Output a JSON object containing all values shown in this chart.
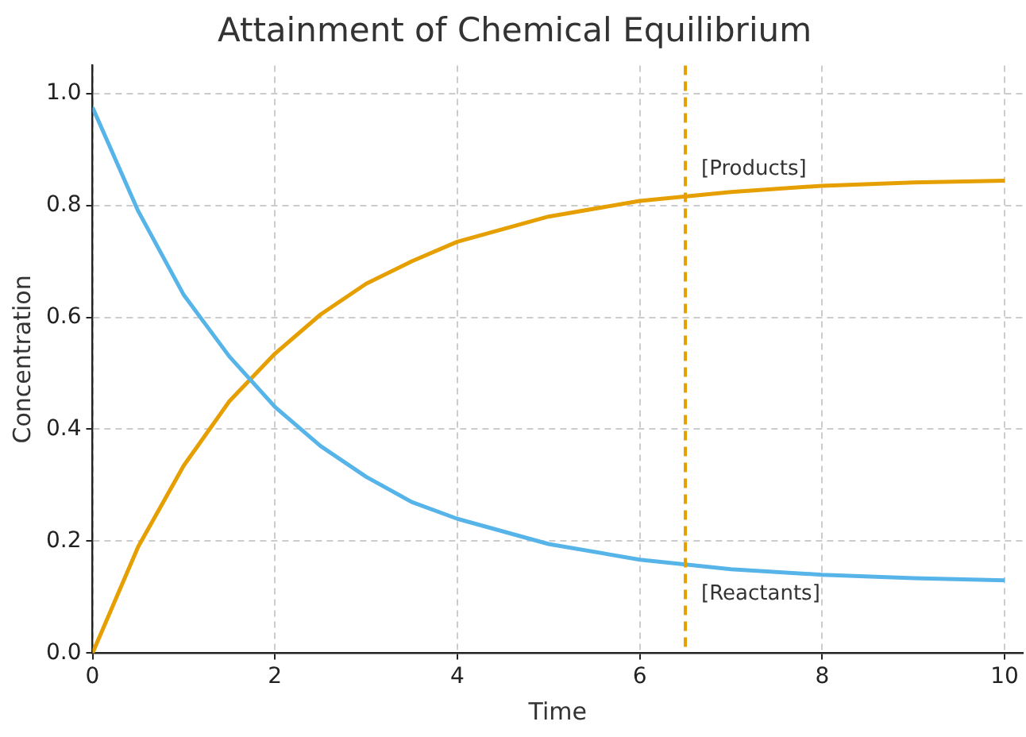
{
  "chart_data": {
    "type": "line",
    "title": "Attainment of Chemical Equilibrium",
    "xlabel": "Time",
    "ylabel": "Concentration",
    "x": [
      0,
      0.5,
      1,
      1.5,
      2,
      2.5,
      3,
      3.5,
      4,
      5,
      6,
      7,
      8,
      9,
      10
    ],
    "series": [
      {
        "name": "[Reactants]",
        "color": "#56b4e9",
        "values": [
          0.975,
          0.79,
          0.64,
          0.53,
          0.44,
          0.37,
          0.315,
          0.27,
          0.24,
          0.195,
          0.167,
          0.15,
          0.14,
          0.134,
          0.13
        ]
      },
      {
        "name": "[Products]",
        "color": "#e69f00",
        "values": [
          0,
          0.19,
          0.335,
          0.45,
          0.535,
          0.605,
          0.66,
          0.7,
          0.735,
          0.78,
          0.808,
          0.824,
          0.835,
          0.841,
          0.844
        ]
      }
    ],
    "xlim": [
      0,
      10.2
    ],
    "ylim": [
      0,
      1.05
    ],
    "xticks": [
      0,
      2,
      4,
      6,
      8,
      10
    ],
    "yticks": [
      {
        "value": 0,
        "label": "0.0"
      },
      {
        "value": 0.2,
        "label": "0.2"
      },
      {
        "value": 0.4,
        "label": "0.4"
      },
      {
        "value": 0.6,
        "label": "0.6"
      },
      {
        "value": 0.8,
        "label": "0.8"
      },
      {
        "value": 1,
        "label": "1.0"
      }
    ],
    "grid": true,
    "marker": "none",
    "line_style": "solid",
    "ref_lines": [
      {
        "axis": "x",
        "value": 6.5,
        "color": "#e69f00",
        "line_style": "dashed"
      }
    ]
  }
}
